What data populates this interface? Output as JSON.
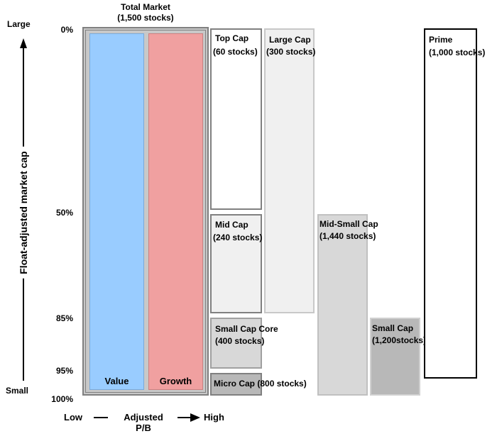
{
  "axis": {
    "y_top": "Large",
    "y_bottom": "Small",
    "y_title": "Float-adjusted market cap",
    "x_low": "Low",
    "x_title": "Adjusted",
    "x_title_line2": "P/B",
    "x_high": "High"
  },
  "percent_ticks": [
    "0%",
    "50%",
    "85%",
    "95%",
    "100%"
  ],
  "total_market": {
    "title": "Total Market",
    "count": "(1,500 stocks)",
    "value_label": "Value",
    "growth_label": "Growth"
  },
  "segments": {
    "top_cap": {
      "name": "Top Cap",
      "count": "(60 stocks)"
    },
    "mid_cap": {
      "name": "Mid Cap",
      "count": "(240 stocks)"
    },
    "small_cap_core": {
      "name": "Small Cap Core",
      "count": "(400 stocks)"
    },
    "micro_cap": {
      "name": "Micro Cap",
      "count": "(800 stocks)"
    },
    "large_cap": {
      "name": "Large Cap",
      "count": "(300 stocks)"
    },
    "mid_small_cap": {
      "name": "Mid-Small Cap",
      "count": "(1,440 stocks)"
    },
    "small_cap": {
      "name": "Small Cap",
      "count": "(1,200stocks)"
    },
    "prime": {
      "name": "Prime",
      "count": "(1,000 stocks)"
    }
  },
  "colors": {
    "value": "#99ccff",
    "growth": "#f0a0a0",
    "total_frame": "#c8c8c8",
    "gray_border": "#808080",
    "light_fill": "#f0f0f0",
    "mid_fill": "#d8d8d8",
    "dark_fill": "#b8b8b8"
  }
}
